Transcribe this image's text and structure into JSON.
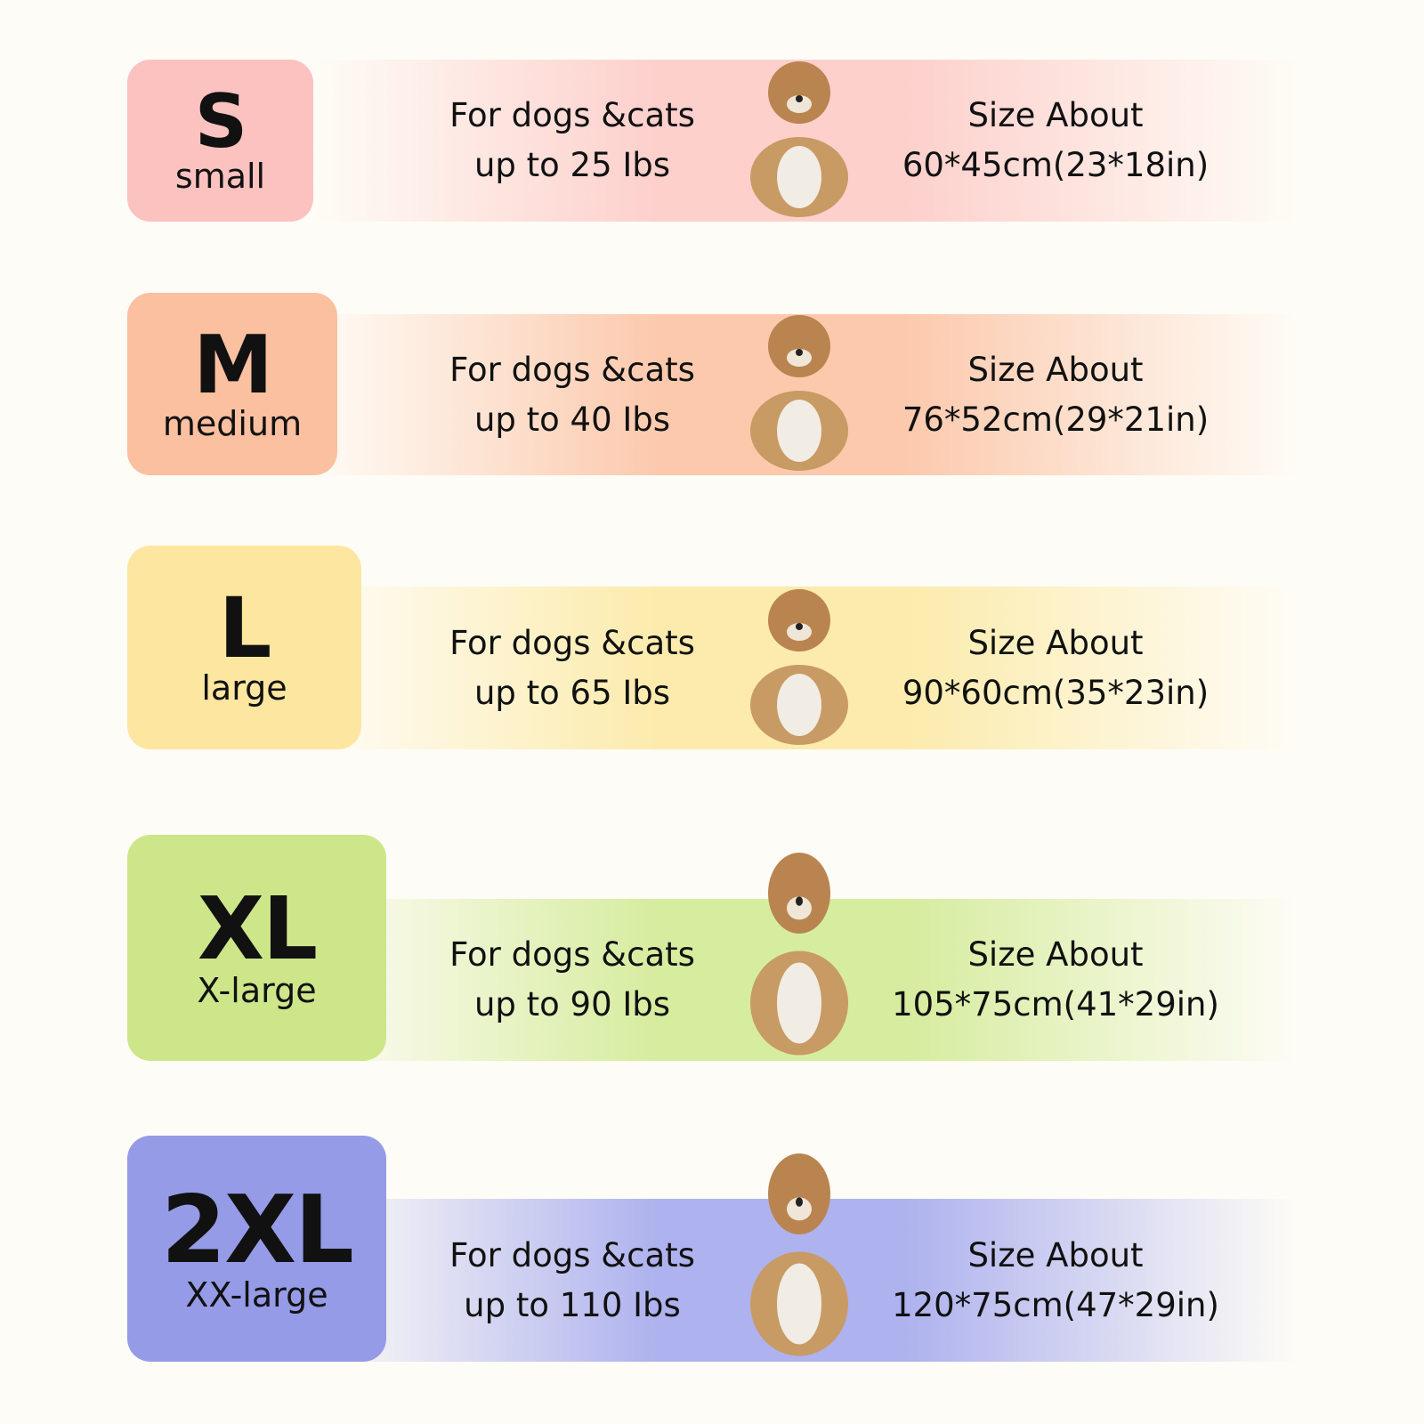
{
  "sizes": [
    {
      "code": "S",
      "name": "small",
      "line1": "For dogs &cats",
      "line2": "up to 25 Ibs",
      "size_label": "Size About",
      "size": "60*45cm(23*18in)",
      "color": "#fcc2c0",
      "band": "#fdd0cc",
      "dog": "poodle-icon"
    },
    {
      "code": "M",
      "name": "medium",
      "line1": "For dogs &cats",
      "line2": "up to 40 Ibs",
      "size_label": "Size About",
      "size": "76*52cm(29*21in)",
      "color": "#fbc0a0",
      "band": "#fcc9ad",
      "dog": "corgi-icon"
    },
    {
      "code": "L",
      "name": "large",
      "line1": "For dogs &cats",
      "line2": "up to 65 Ibs",
      "size_label": "Size About",
      "size": "90*60cm(35*23in)",
      "color": "#fde6a0",
      "band": "#fcebac",
      "dog": "sheepdog-icon"
    },
    {
      "code": "XL",
      "name": "X-large",
      "line1": "For dogs &cats",
      "line2": "up to 90 Ibs",
      "size_label": "Size About",
      "size": "105*75cm(41*29in)",
      "color": "#cde68a",
      "band": "#d6ec9e",
      "dog": "border-collie-icon"
    },
    {
      "code": "2XL",
      "name": "XX-large",
      "line1": "For dogs &cats",
      "line2": "up to 110 Ibs",
      "size_label": "Size About",
      "size": "120*75cm(47*29in)",
      "color": "#959be6",
      "band": "#aeb2ee",
      "dog": "labrador-icon"
    }
  ]
}
